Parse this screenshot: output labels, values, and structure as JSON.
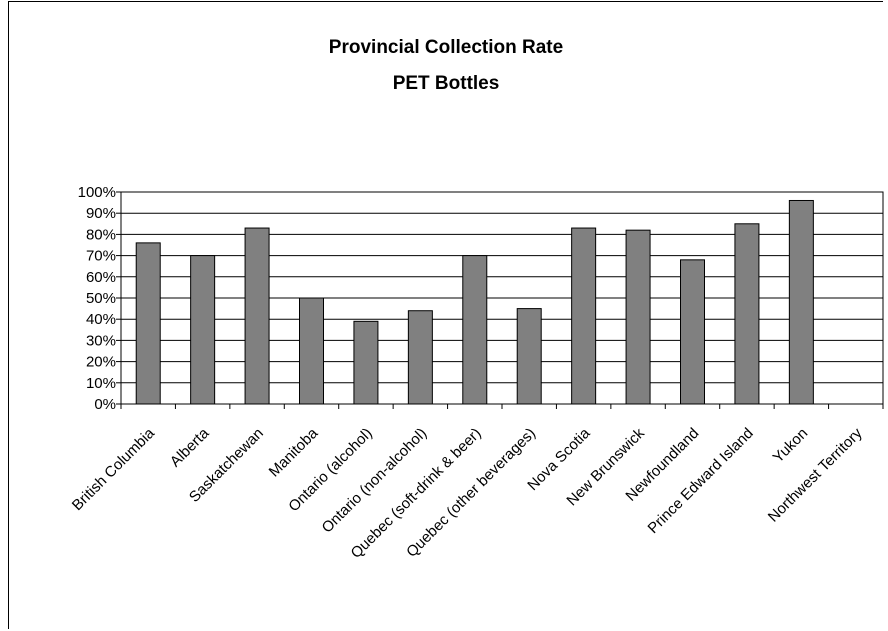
{
  "chart_data": {
    "type": "bar",
    "title": [
      "Provincial Collection Rate",
      "PET Bottles"
    ],
    "categories": [
      "British Columbia",
      "Alberta",
      "Saskatchewan",
      "Manitoba",
      "Ontario (alcohol)",
      "Ontario (non-alcohol)",
      "Quebec (soft-drink & beer)",
      "Quebec (other beverages)",
      "Nova Scotia",
      "New Brunswick",
      "Newfoundland",
      "Prince Edward Island",
      "Yukon",
      "Northwest Territory"
    ],
    "values": [
      76,
      70,
      83,
      50,
      39,
      44,
      70,
      45,
      83,
      82,
      68,
      85,
      96,
      null
    ],
    "y_ticks": [
      "0%",
      "10%",
      "20%",
      "30%",
      "40%",
      "50%",
      "60%",
      "70%",
      "80%",
      "90%",
      "100%"
    ],
    "ylim": [
      0,
      100
    ],
    "grid": true,
    "bar_color": "#808080",
    "xlabel": "",
    "ylabel": ""
  }
}
